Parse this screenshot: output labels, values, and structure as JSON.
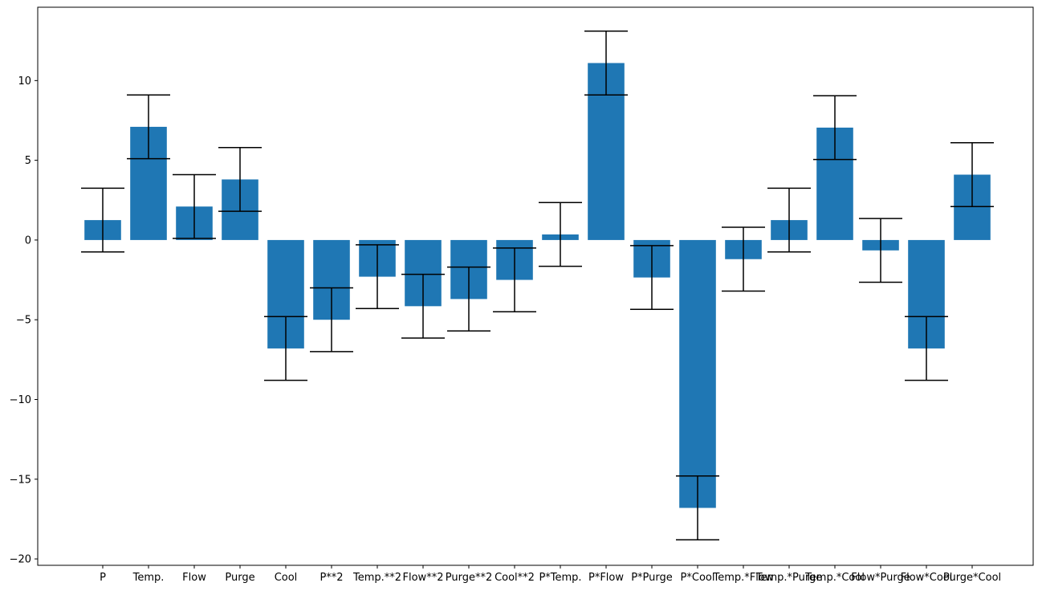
{
  "chart_data": {
    "type": "bar",
    "title": "",
    "xlabel": "",
    "ylabel": "",
    "categories": [
      "P",
      "Temp.",
      "Flow",
      "Purge",
      "Cool",
      "P**2",
      "Temp.**2",
      "Flow**2",
      "Purge**2",
      "Cool**2",
      "P*Temp.",
      "P*Flow",
      "P*Purge",
      "P*Cool",
      "Temp.*Flow",
      "Temp.*Purge",
      "Temp.*Cool",
      "Flow*Purge",
      "Flow*Cool",
      "Purge*Cool"
    ],
    "values": [
      1.25,
      7.1,
      2.1,
      3.8,
      -6.8,
      -5.0,
      -2.3,
      -4.15,
      -3.7,
      -2.5,
      0.35,
      11.1,
      -2.35,
      -16.8,
      -1.2,
      1.25,
      7.05,
      -0.65,
      -6.8,
      4.1
    ],
    "error": 2.0,
    "ylim": [
      -20.4,
      14.6
    ],
    "yticks": [
      -20,
      -15,
      -10,
      -5,
      0,
      5,
      10
    ],
    "grid": false,
    "colors": {
      "bar": "#1f77b4",
      "errorbar": "#000000",
      "axis": "#000000"
    }
  }
}
